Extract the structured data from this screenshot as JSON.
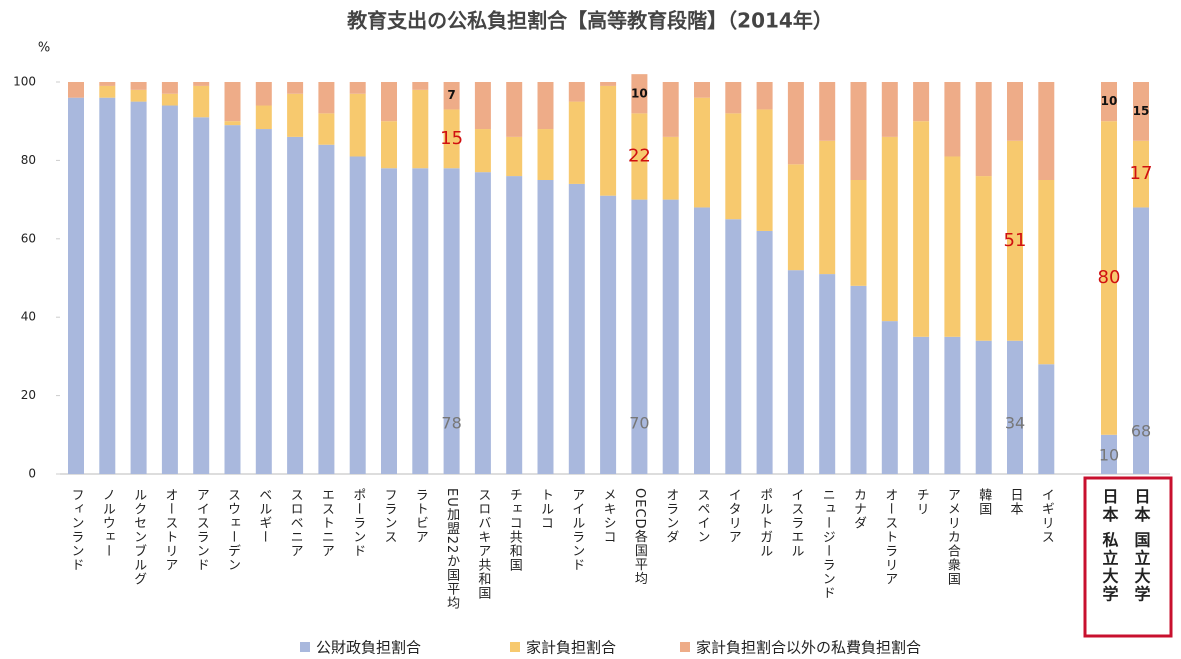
{
  "chart_data": {
    "type": "stacked-bar",
    "title": "教育支出の公私負担割合【高等教育段階】（2014年）",
    "y_label": "%",
    "categories": [
      "フィンランド",
      "ノルウェー",
      "ルクセンブルグ",
      "オーストリア",
      "アイスランド",
      "スウェーデン",
      "ベルギー",
      "スロベニア",
      "エストニア",
      "ポーランド",
      "フランス",
      "ラトビア",
      "EU加盟22か国平均",
      "スロバキア共和国",
      "チェコ共和国",
      "トルコ",
      "アイルランド",
      "メキシコ",
      "OECD各国平均",
      "オランダ",
      "スペイン",
      "イタリア",
      "ポルトガル",
      "イスラエル",
      "ニュージーランド",
      "カナダ",
      "オーストラリア",
      "チリ",
      "アメリカ合衆国",
      "韓国",
      "日本",
      "イギリス",
      "日本 私立大学",
      "日本 国立大学"
    ],
    "series": [
      {
        "name": "公財政負担割合",
        "color": "#a9b8dd",
        "values": [
          96,
          96,
          95,
          94,
          91,
          89,
          88,
          86,
          84,
          81,
          78,
          78,
          78,
          77,
          76,
          75,
          74,
          71,
          70,
          70,
          68,
          65,
          62,
          52,
          51,
          48,
          39,
          35,
          35,
          34,
          34,
          28,
          10,
          68
        ],
        "value_labels": [
          null,
          null,
          null,
          null,
          null,
          null,
          null,
          null,
          null,
          null,
          null,
          null,
          "78",
          null,
          null,
          null,
          null,
          null,
          "70",
          null,
          null,
          null,
          null,
          null,
          null,
          null,
          null,
          null,
          null,
          null,
          "34",
          null,
          "10",
          "68"
        ]
      },
      {
        "name": "家計負担割合",
        "color": "#f7c96e",
        "values": [
          0,
          3,
          3,
          3,
          8,
          1,
          6,
          11,
          8,
          16,
          12,
          20,
          15,
          11,
          10,
          13,
          21,
          28,
          22,
          16,
          28,
          27,
          31,
          27,
          34,
          27,
          47,
          55,
          46,
          42,
          51,
          47,
          80,
          17
        ],
        "value_labels": [
          null,
          null,
          null,
          null,
          null,
          null,
          null,
          null,
          null,
          null,
          null,
          null,
          "15",
          null,
          null,
          null,
          null,
          null,
          "22",
          null,
          null,
          null,
          null,
          null,
          null,
          null,
          null,
          null,
          null,
          null,
          "51",
          null,
          "80",
          "17"
        ]
      },
      {
        "name": "家計負担割合以外の私費負担割合",
        "color": "#eeac88",
        "values": [
          4,
          1,
          2,
          3,
          1,
          10,
          6,
          3,
          8,
          3,
          10,
          2,
          7,
          12,
          14,
          12,
          5,
          1,
          10,
          14,
          4,
          8,
          7,
          21,
          15,
          25,
          14,
          10,
          19,
          24,
          15,
          25,
          10,
          15
        ],
        "value_labels": [
          null,
          null,
          null,
          null,
          null,
          null,
          null,
          null,
          null,
          null,
          null,
          null,
          "7",
          null,
          null,
          null,
          null,
          null,
          "10",
          null,
          null,
          null,
          null,
          null,
          null,
          null,
          null,
          null,
          null,
          null,
          null,
          null,
          "10",
          "15"
        ]
      }
    ],
    "ylim": [
      0,
      100
    ],
    "yticks": [
      0,
      20,
      40,
      60,
      80,
      100
    ],
    "grid": false
  }
}
